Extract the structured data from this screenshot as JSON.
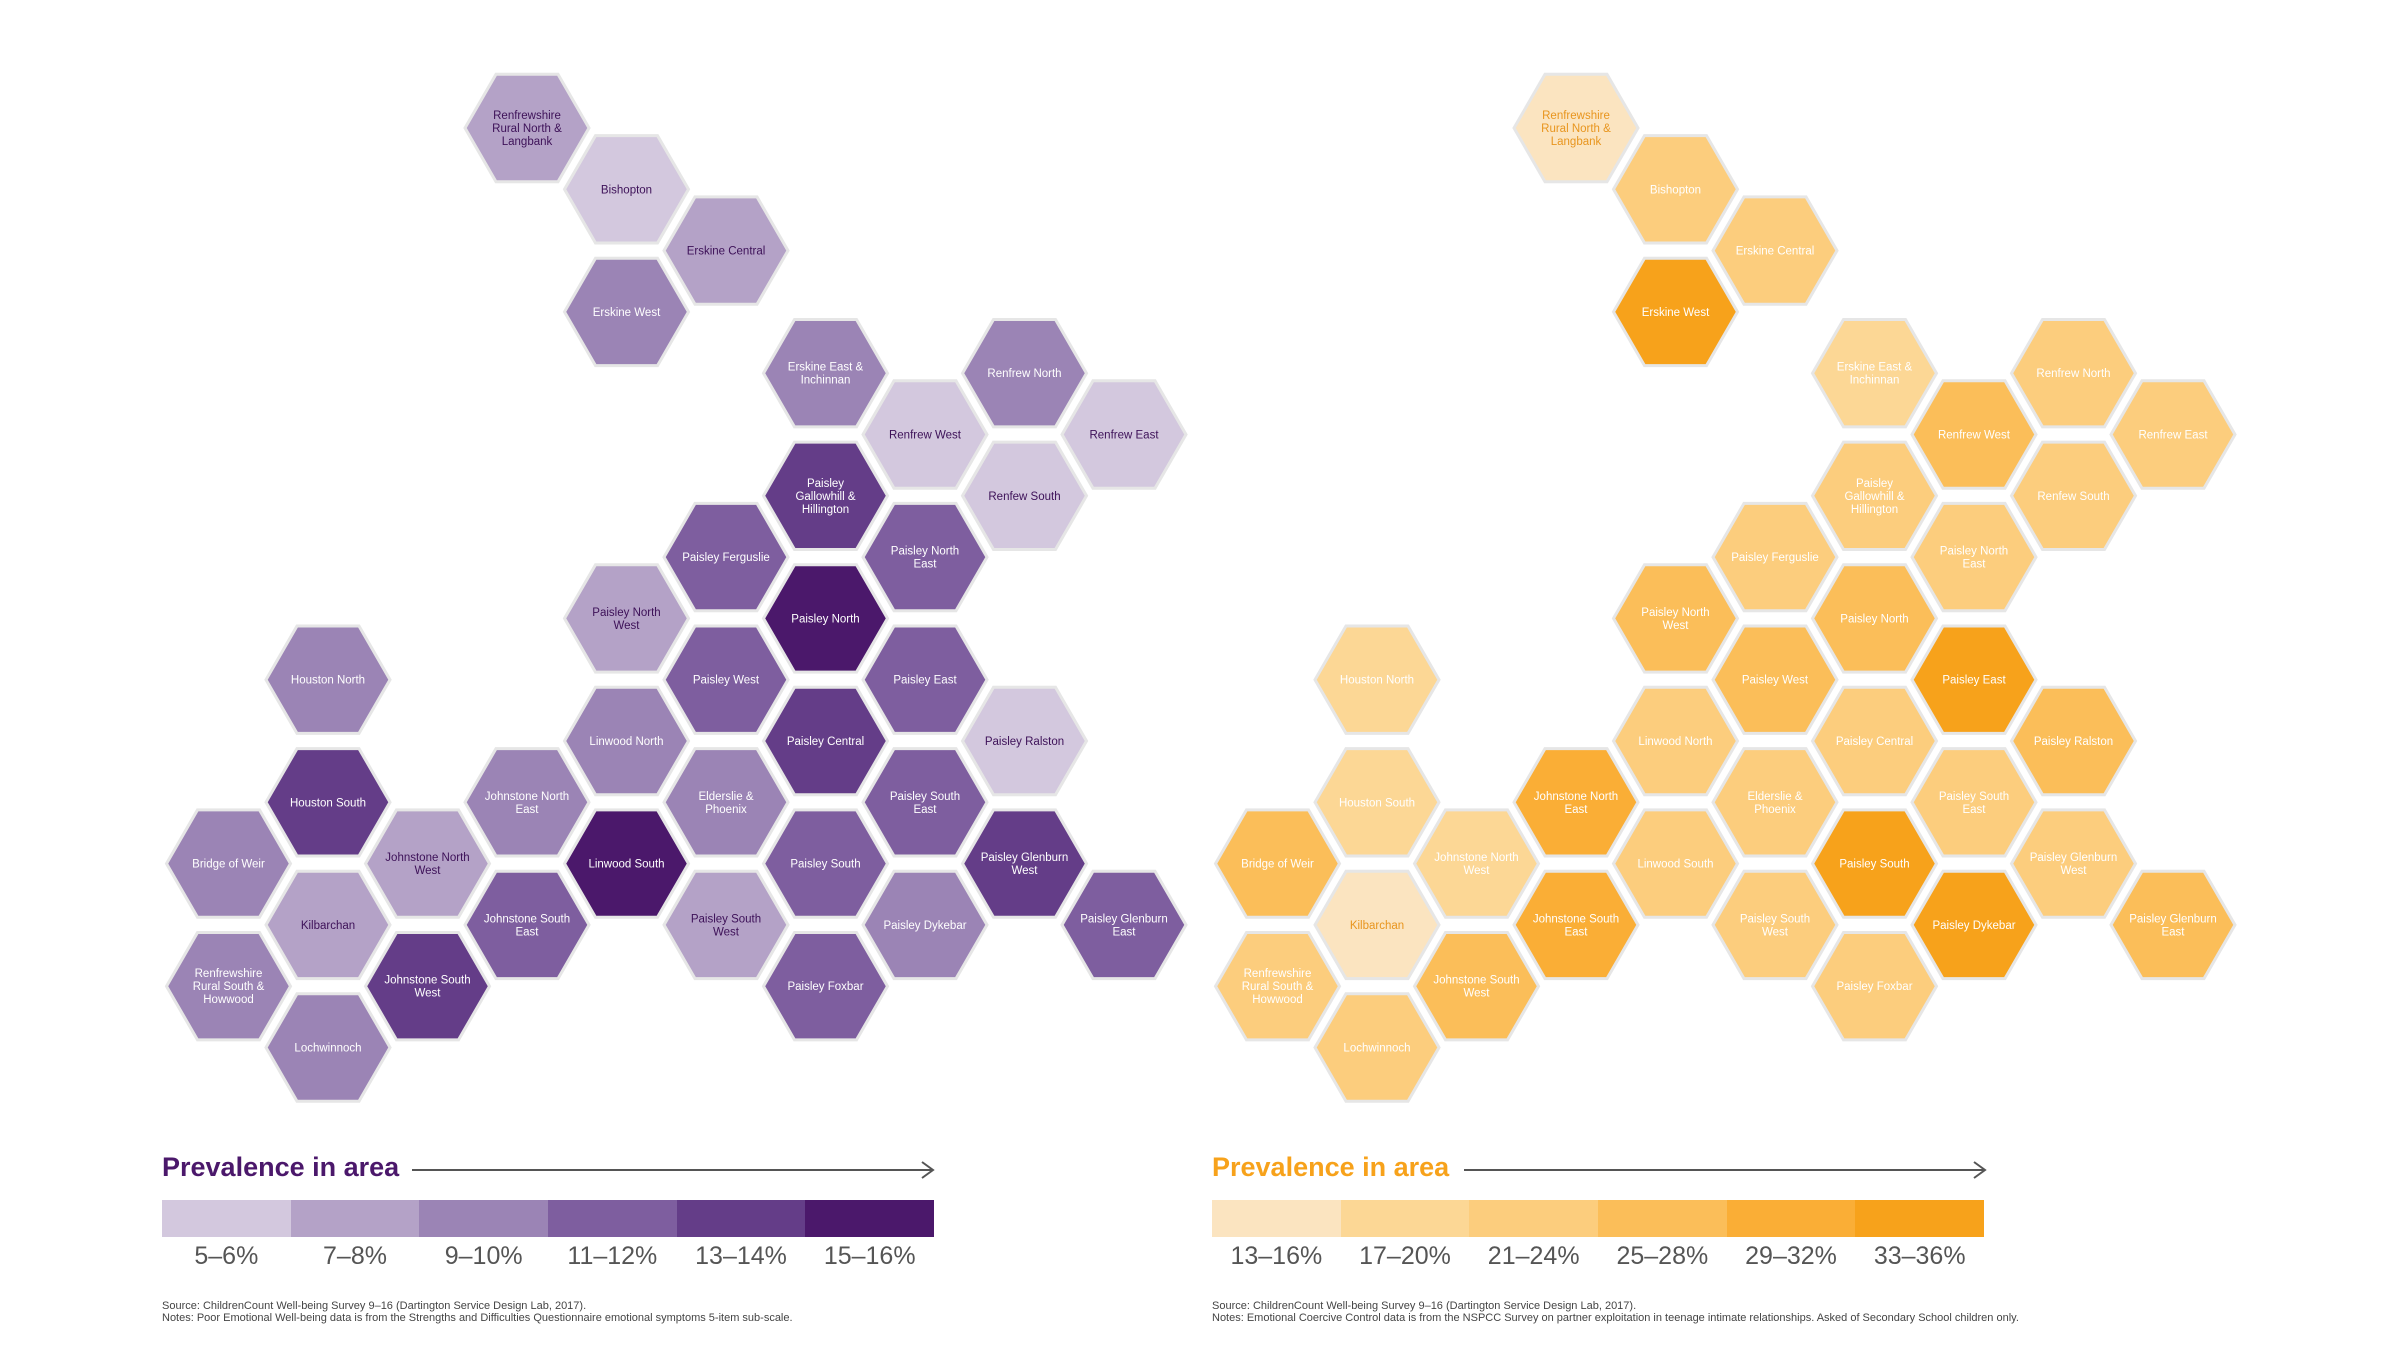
{
  "chart_data": [
    {
      "type": "heatmap",
      "legend": {
        "title": "Prevalence in area",
        "bins": [
          "5–6%",
          "7–8%",
          "9–10%",
          "11–12%",
          "13–14%",
          "15–16%"
        ],
        "colors": [
          "#d3c8de",
          "#b4a2c7",
          "#9b84b5",
          "#7e5e9f",
          "#643d88",
          "#4b186b"
        ],
        "title_color": "#4b186b"
      },
      "areas": [
        {
          "name": "Renfrewshire Rural North & Langbank",
          "bin": 1
        },
        {
          "name": "Bishopton",
          "bin": 0
        },
        {
          "name": "Erskine Central",
          "bin": 1
        },
        {
          "name": "Erskine West",
          "bin": 2
        },
        {
          "name": "Erskine East & Inchinnan",
          "bin": 2
        },
        {
          "name": "Renfrew North",
          "bin": 2
        },
        {
          "name": "Renfrew West",
          "bin": 0
        },
        {
          "name": "Renfrew East",
          "bin": 0
        },
        {
          "name": "Renfew South",
          "bin": 0
        },
        {
          "name": "Paisley Gallowhill & Hillington",
          "bin": 4
        },
        {
          "name": "Paisley Ferguslie",
          "bin": 3
        },
        {
          "name": "Paisley North East",
          "bin": 3
        },
        {
          "name": "Paisley North West",
          "bin": 1
        },
        {
          "name": "Paisley North",
          "bin": 5
        },
        {
          "name": "Paisley West",
          "bin": 3
        },
        {
          "name": "Paisley East",
          "bin": 3
        },
        {
          "name": "Linwood North",
          "bin": 2
        },
        {
          "name": "Paisley Central",
          "bin": 4
        },
        {
          "name": "Paisley Ralston",
          "bin": 0
        },
        {
          "name": "Houston North",
          "bin": 2
        },
        {
          "name": "Houston South",
          "bin": 4
        },
        {
          "name": "Johnstone North East",
          "bin": 2
        },
        {
          "name": "Elderslie & Phoenix",
          "bin": 2
        },
        {
          "name": "Paisley South East",
          "bin": 3
        },
        {
          "name": "Bridge of Weir",
          "bin": 2
        },
        {
          "name": "Johnstone North West",
          "bin": 1
        },
        {
          "name": "Linwood South",
          "bin": 5
        },
        {
          "name": "Paisley South",
          "bin": 3
        },
        {
          "name": "Paisley Glenburn West",
          "bin": 4
        },
        {
          "name": "Kilbarchan",
          "bin": 1
        },
        {
          "name": "Johnstone South East",
          "bin": 3
        },
        {
          "name": "Paisley South West",
          "bin": 1
        },
        {
          "name": "Paisley Dykebar",
          "bin": 2
        },
        {
          "name": "Paisley Glenburn East",
          "bin": 3
        },
        {
          "name": "Renfrewshire Rural South & Howwood",
          "bin": 2
        },
        {
          "name": "Johnstone South West",
          "bin": 4
        },
        {
          "name": "Paisley Foxbar",
          "bin": 3
        },
        {
          "name": "Lochwinnoch",
          "bin": 2
        }
      ],
      "notes": [
        "Source: ChildrenCount Well-being Survey 9–16 (Dartington Service Design Lab, 2017).",
        "Notes: Poor Emotional Well-being data is from the Strengths and Difficulties Questionnaire emotional symptoms 5-item sub-scale."
      ]
    },
    {
      "type": "heatmap",
      "legend": {
        "title": "Prevalence in area",
        "bins": [
          "13–16%",
          "17–20%",
          "21–24%",
          "25–28%",
          "29–32%",
          "33–36%"
        ],
        "colors": [
          "#fbe4c0",
          "#fcd795",
          "#fccd7d",
          "#fbbe59",
          "#faae36",
          "#f7a21b"
        ],
        "title_color": "#f7a21b"
      },
      "areas": [
        {
          "name": "Renfrewshire Rural North & Langbank",
          "bin": 0
        },
        {
          "name": "Bishopton",
          "bin": 2
        },
        {
          "name": "Erskine Central",
          "bin": 2
        },
        {
          "name": "Erskine West",
          "bin": 5
        },
        {
          "name": "Erskine East & Inchinnan",
          "bin": 1
        },
        {
          "name": "Renfrew North",
          "bin": 2
        },
        {
          "name": "Renfrew West",
          "bin": 3
        },
        {
          "name": "Renfrew East",
          "bin": 2
        },
        {
          "name": "Renfew South",
          "bin": 2
        },
        {
          "name": "Paisley Gallowhill & Hillington",
          "bin": 2
        },
        {
          "name": "Paisley Ferguslie",
          "bin": 2
        },
        {
          "name": "Paisley North East",
          "bin": 2
        },
        {
          "name": "Paisley North West",
          "bin": 3
        },
        {
          "name": "Paisley North",
          "bin": 3
        },
        {
          "name": "Paisley West",
          "bin": 3
        },
        {
          "name": "Paisley East",
          "bin": 5
        },
        {
          "name": "Linwood North",
          "bin": 2
        },
        {
          "name": "Paisley Central",
          "bin": 2
        },
        {
          "name": "Paisley Ralston",
          "bin": 3
        },
        {
          "name": "Houston North",
          "bin": 1
        },
        {
          "name": "Houston South",
          "bin": 1
        },
        {
          "name": "Johnstone North East",
          "bin": 4
        },
        {
          "name": "Elderslie & Phoenix",
          "bin": 2
        },
        {
          "name": "Paisley South East",
          "bin": 2
        },
        {
          "name": "Bridge of Weir",
          "bin": 3
        },
        {
          "name": "Johnstone North West",
          "bin": 1
        },
        {
          "name": "Linwood South",
          "bin": 2
        },
        {
          "name": "Paisley South",
          "bin": 5
        },
        {
          "name": "Paisley Glenburn West",
          "bin": 2
        },
        {
          "name": "Kilbarchan",
          "bin": 0
        },
        {
          "name": "Johnstone South East",
          "bin": 4
        },
        {
          "name": "Paisley South West",
          "bin": 2
        },
        {
          "name": "Paisley Dykebar",
          "bin": 5
        },
        {
          "name": "Paisley Glenburn East",
          "bin": 3
        },
        {
          "name": "Renfrewshire Rural South & Howwood",
          "bin": 2
        },
        {
          "name": "Johnstone South West",
          "bin": 3
        },
        {
          "name": "Paisley Foxbar",
          "bin": 2
        },
        {
          "name": "Lochwinnoch",
          "bin": 2
        }
      ],
      "notes": [
        "Source: ChildrenCount Well-being Survey 9–16 (Dartington Service Design Lab, 2017).",
        "Notes: Emotional Coercive Control data is from the NSPCC Survey on partner exploitation in teenage intimate relationships. Asked of Secondary School children only."
      ]
    }
  ]
}
